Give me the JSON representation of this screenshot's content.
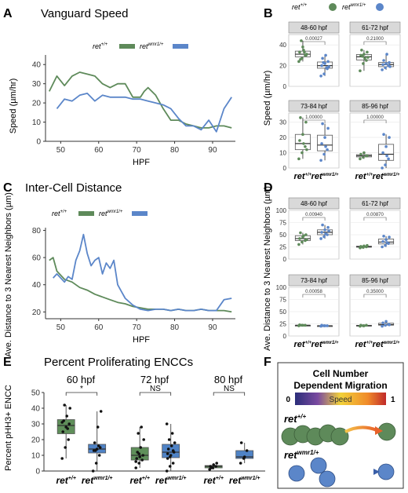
{
  "panels": {
    "A": "A",
    "B": "B",
    "C": "C",
    "D": "D",
    "E": "E",
    "F": "F"
  },
  "colors": {
    "wt": "#5e8a5a",
    "mut": "#5b86c9",
    "wt_fill": "#5f8f5a",
    "mut_fill": "#4f83c6"
  },
  "legend": {
    "wt": "ret",
    "wt_sup": "+/+",
    "mut": "ret",
    "mut_sup": "wmr1/+"
  },
  "chart_data": [
    {
      "id": "A",
      "type": "line",
      "title": "Vanguard Speed",
      "xlabel": "HPF",
      "ylabel": "Speed (µm/hr)",
      "xlim": [
        46,
        96
      ],
      "ylim": [
        0,
        45
      ],
      "xticks": [
        "50",
        "60",
        "70",
        "80",
        "90"
      ],
      "yticks": [
        "0",
        "10",
        "20",
        "30",
        "40"
      ],
      "series": [
        {
          "name": "ret+/+",
          "x": [
            47,
            49,
            51,
            53,
            55,
            57,
            59,
            61,
            63,
            65,
            67,
            69,
            71,
            72,
            73,
            75,
            77,
            79,
            81,
            83,
            85,
            87,
            89,
            91,
            93,
            95
          ],
          "y": [
            26,
            34,
            29,
            34,
            36,
            35,
            34,
            30,
            28,
            30,
            30,
            23,
            23,
            26,
            28,
            24,
            17,
            11,
            11,
            9,
            8,
            7,
            7,
            8,
            8,
            7
          ]
        },
        {
          "name": "ret wmr1/+",
          "x": [
            49,
            51,
            53,
            55,
            57,
            59,
            61,
            63,
            65,
            67,
            69,
            71,
            73,
            75,
            77,
            79,
            81,
            83,
            85,
            87,
            89,
            91,
            93,
            95
          ],
          "y": [
            17,
            22,
            21,
            24,
            25,
            21,
            24,
            23,
            23,
            23,
            22,
            22,
            21,
            20,
            19,
            17,
            12,
            8,
            8,
            6,
            11,
            5,
            17,
            23
          ]
        }
      ]
    },
    {
      "id": "B",
      "type": "box",
      "ylabel": "Speed (µm/hr)",
      "yticks_top": [
        "0",
        "20",
        "40"
      ],
      "yticks_bottom": [
        "0",
        "10",
        "20",
        "30"
      ],
      "facets": [
        {
          "label": "48-60 hpf",
          "pval": "0.00027",
          "wt": [
            24,
            27,
            30,
            33,
            38,
            30,
            26,
            35,
            31,
            44,
            33
          ],
          "mut": [
            10,
            12,
            17,
            20,
            22,
            24,
            27,
            30,
            19,
            23,
            18
          ]
        },
        {
          "label": "61-72 hpf",
          "pval": "0.21000",
          "wt": [
            15,
            22,
            25,
            30,
            31,
            33,
            35,
            27,
            28,
            29
          ],
          "mut": [
            16,
            18,
            20,
            21,
            22,
            23,
            25,
            31,
            19
          ]
        },
        {
          "label": "73-84 hpf",
          "pval": "1.00000",
          "wt": [
            6,
            10,
            14,
            18,
            22,
            30,
            33,
            16,
            12
          ],
          "mut": [
            5,
            9,
            12,
            16,
            20,
            26,
            29,
            14
          ]
        },
        {
          "label": "85-96 hpf",
          "pval": "1.00000",
          "wt": [
            6,
            7,
            8,
            9,
            10,
            8
          ],
          "mut": [
            0,
            2,
            6,
            10,
            14,
            20,
            22,
            8
          ]
        }
      ]
    },
    {
      "id": "C",
      "type": "line",
      "title": "Inter-Cell Distance",
      "xlabel": "HPF",
      "ylabel": "Ave. Distance to 3 Nearest Neighbors (µm)",
      "xlim": [
        46,
        96
      ],
      "ylim": [
        15,
        82
      ],
      "xticks": [
        "50",
        "60",
        "70",
        "80",
        "90"
      ],
      "yticks": [
        "20",
        "40",
        "60",
        "80"
      ],
      "series": [
        {
          "name": "ret+/+",
          "x": [
            47,
            48,
            49,
            51,
            53,
            55,
            57,
            59,
            61,
            63,
            65,
            67,
            69,
            71,
            73,
            75,
            77,
            79,
            81,
            83,
            85,
            87,
            89,
            91,
            93,
            95
          ],
          "y": [
            58,
            60,
            50,
            44,
            42,
            38,
            36,
            33,
            31,
            29,
            27,
            26,
            24,
            23,
            22,
            22,
            22,
            21,
            22,
            21,
            21,
            22,
            21,
            21,
            21,
            20
          ]
        },
        {
          "name": "ret wmr1/+",
          "x": [
            48,
            49,
            50,
            51,
            52,
            53,
            54,
            55,
            56,
            57,
            58,
            59,
            60,
            61,
            62,
            63,
            64,
            65,
            66,
            67,
            69,
            71,
            73,
            75,
            77,
            79,
            81,
            83,
            85,
            87,
            89,
            91,
            93,
            95
          ],
          "y": [
            45,
            48,
            45,
            42,
            46,
            44,
            58,
            65,
            77,
            63,
            54,
            58,
            60,
            48,
            56,
            52,
            58,
            40,
            35,
            30,
            25,
            22,
            21,
            22,
            22,
            21,
            22,
            21,
            21,
            22,
            21,
            21,
            29,
            30
          ]
        }
      ]
    },
    {
      "id": "D",
      "type": "box",
      "ylabel": "Ave. Distance to 3 Nearest Neighbors (µm)",
      "yticks": [
        "0",
        "25",
        "50",
        "75",
        "100"
      ],
      "facets": [
        {
          "label": "48-60 hpf",
          "pval": "0.00940",
          "wt": [
            30,
            35,
            38,
            42,
            45,
            50,
            54,
            48,
            40
          ],
          "mut": [
            42,
            46,
            50,
            55,
            60,
            65,
            70,
            52,
            58
          ]
        },
        {
          "label": "61-72 hpf",
          "pval": "0.00870",
          "wt": [
            23,
            24,
            25,
            26,
            27,
            28,
            25
          ],
          "mut": [
            25,
            28,
            32,
            36,
            40,
            45,
            47,
            34
          ]
        },
        {
          "label": "73-84 hpf",
          "pval": "0.00058",
          "wt": [
            21,
            22,
            22,
            23,
            22
          ],
          "mut": [
            20,
            21,
            21,
            22,
            21
          ]
        },
        {
          "label": "85-96 hpf",
          "pval": "0.35000",
          "wt": [
            20,
            21,
            22,
            22,
            21
          ],
          "mut": [
            20,
            22,
            24,
            27,
            30,
            23
          ]
        }
      ]
    },
    {
      "id": "E",
      "type": "box",
      "title": "Percent Proliferating ENCCs",
      "ylabel": "Percent pHH3+ ENCC",
      "ylim": [
        0,
        50
      ],
      "yticks": [
        "0",
        "10",
        "20",
        "30",
        "40",
        "50"
      ],
      "groups": [
        {
          "label": "60 hpf",
          "sig": "*",
          "wt": [
            8,
            15,
            20,
            25,
            28,
            30,
            32,
            35,
            40,
            42,
            27,
            31
          ],
          "mut": [
            0,
            5,
            10,
            13,
            14,
            15,
            18,
            28,
            38,
            13,
            16
          ]
        },
        {
          "label": "72 hpf",
          "sig": "NS",
          "wt": [
            2,
            5,
            7,
            8,
            9,
            10,
            12,
            15,
            20,
            24,
            28,
            6,
            11
          ],
          "mut": [
            0,
            3,
            5,
            8,
            10,
            12,
            14,
            16,
            18,
            20,
            24,
            30,
            9,
            13,
            11
          ]
        },
        {
          "label": "80 hpf",
          "sig": "NS",
          "wt": [
            1,
            2,
            3,
            3,
            4,
            5,
            2
          ],
          "mut": [
            5,
            8,
            13,
            18,
            9
          ]
        }
      ]
    }
  ],
  "panelF": {
    "title_line1": "Cell Number",
    "title_line2": "Dependent Migration",
    "bar_min": "0",
    "bar_max": "1",
    "bar_label": "Speed",
    "wt_label": "ret",
    "wt_sup": "+/+",
    "mut_label": "ret",
    "mut_sup": "wmr1/+"
  }
}
